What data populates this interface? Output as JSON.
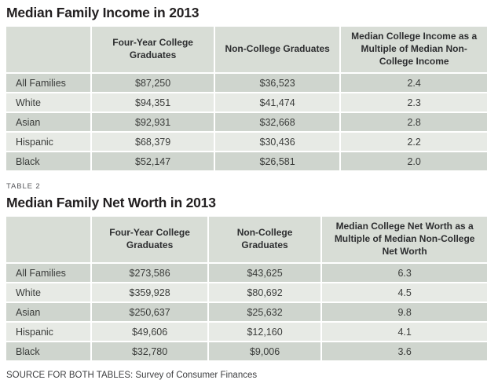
{
  "chart_data": [
    {
      "type": "table",
      "label": "",
      "title": "Median Family Income in 2013",
      "columns": [
        "",
        "Four-Year College Graduates",
        "Non-College Graduates",
        "Median College Income as a Multiple of Median Non-College Income"
      ],
      "rows": [
        [
          "All Families",
          "$87,250",
          "$36,523",
          "2.4"
        ],
        [
          "White",
          "$94,351",
          "$41,474",
          "2.3"
        ],
        [
          "Asian",
          "$92,931",
          "$32,668",
          "2.8"
        ],
        [
          "Hispanic",
          "$68,379",
          "$30,436",
          "2.2"
        ],
        [
          "Black",
          "$52,147",
          "$26,581",
          "2.0"
        ]
      ]
    },
    {
      "type": "table",
      "label": "TABLE 2",
      "title": "Median Family Net Worth in 2013",
      "columns": [
        "",
        "Four-Year College Graduates",
        "Non-College Graduates",
        "Median College Net Worth as a Multiple of Median Non-College Net Worth"
      ],
      "rows": [
        [
          "All Families",
          "$273,586",
          "$43,625",
          "6.3"
        ],
        [
          "White",
          "$359,928",
          "$80,692",
          "4.5"
        ],
        [
          "Asian",
          "$250,637",
          "$25,632",
          "9.8"
        ],
        [
          "Hispanic",
          "$49,606",
          "$12,160",
          "4.1"
        ],
        [
          "Black",
          "$32,780",
          "$9,006",
          "3.6"
        ]
      ]
    }
  ],
  "source_note": "SOURCE FOR BOTH TABLES: Survey of Consumer Finances",
  "colors": {
    "header_bg": "#d8ddd6",
    "row_dark_bg": "#cfd5ce",
    "row_light_bg": "#e7eae5"
  }
}
